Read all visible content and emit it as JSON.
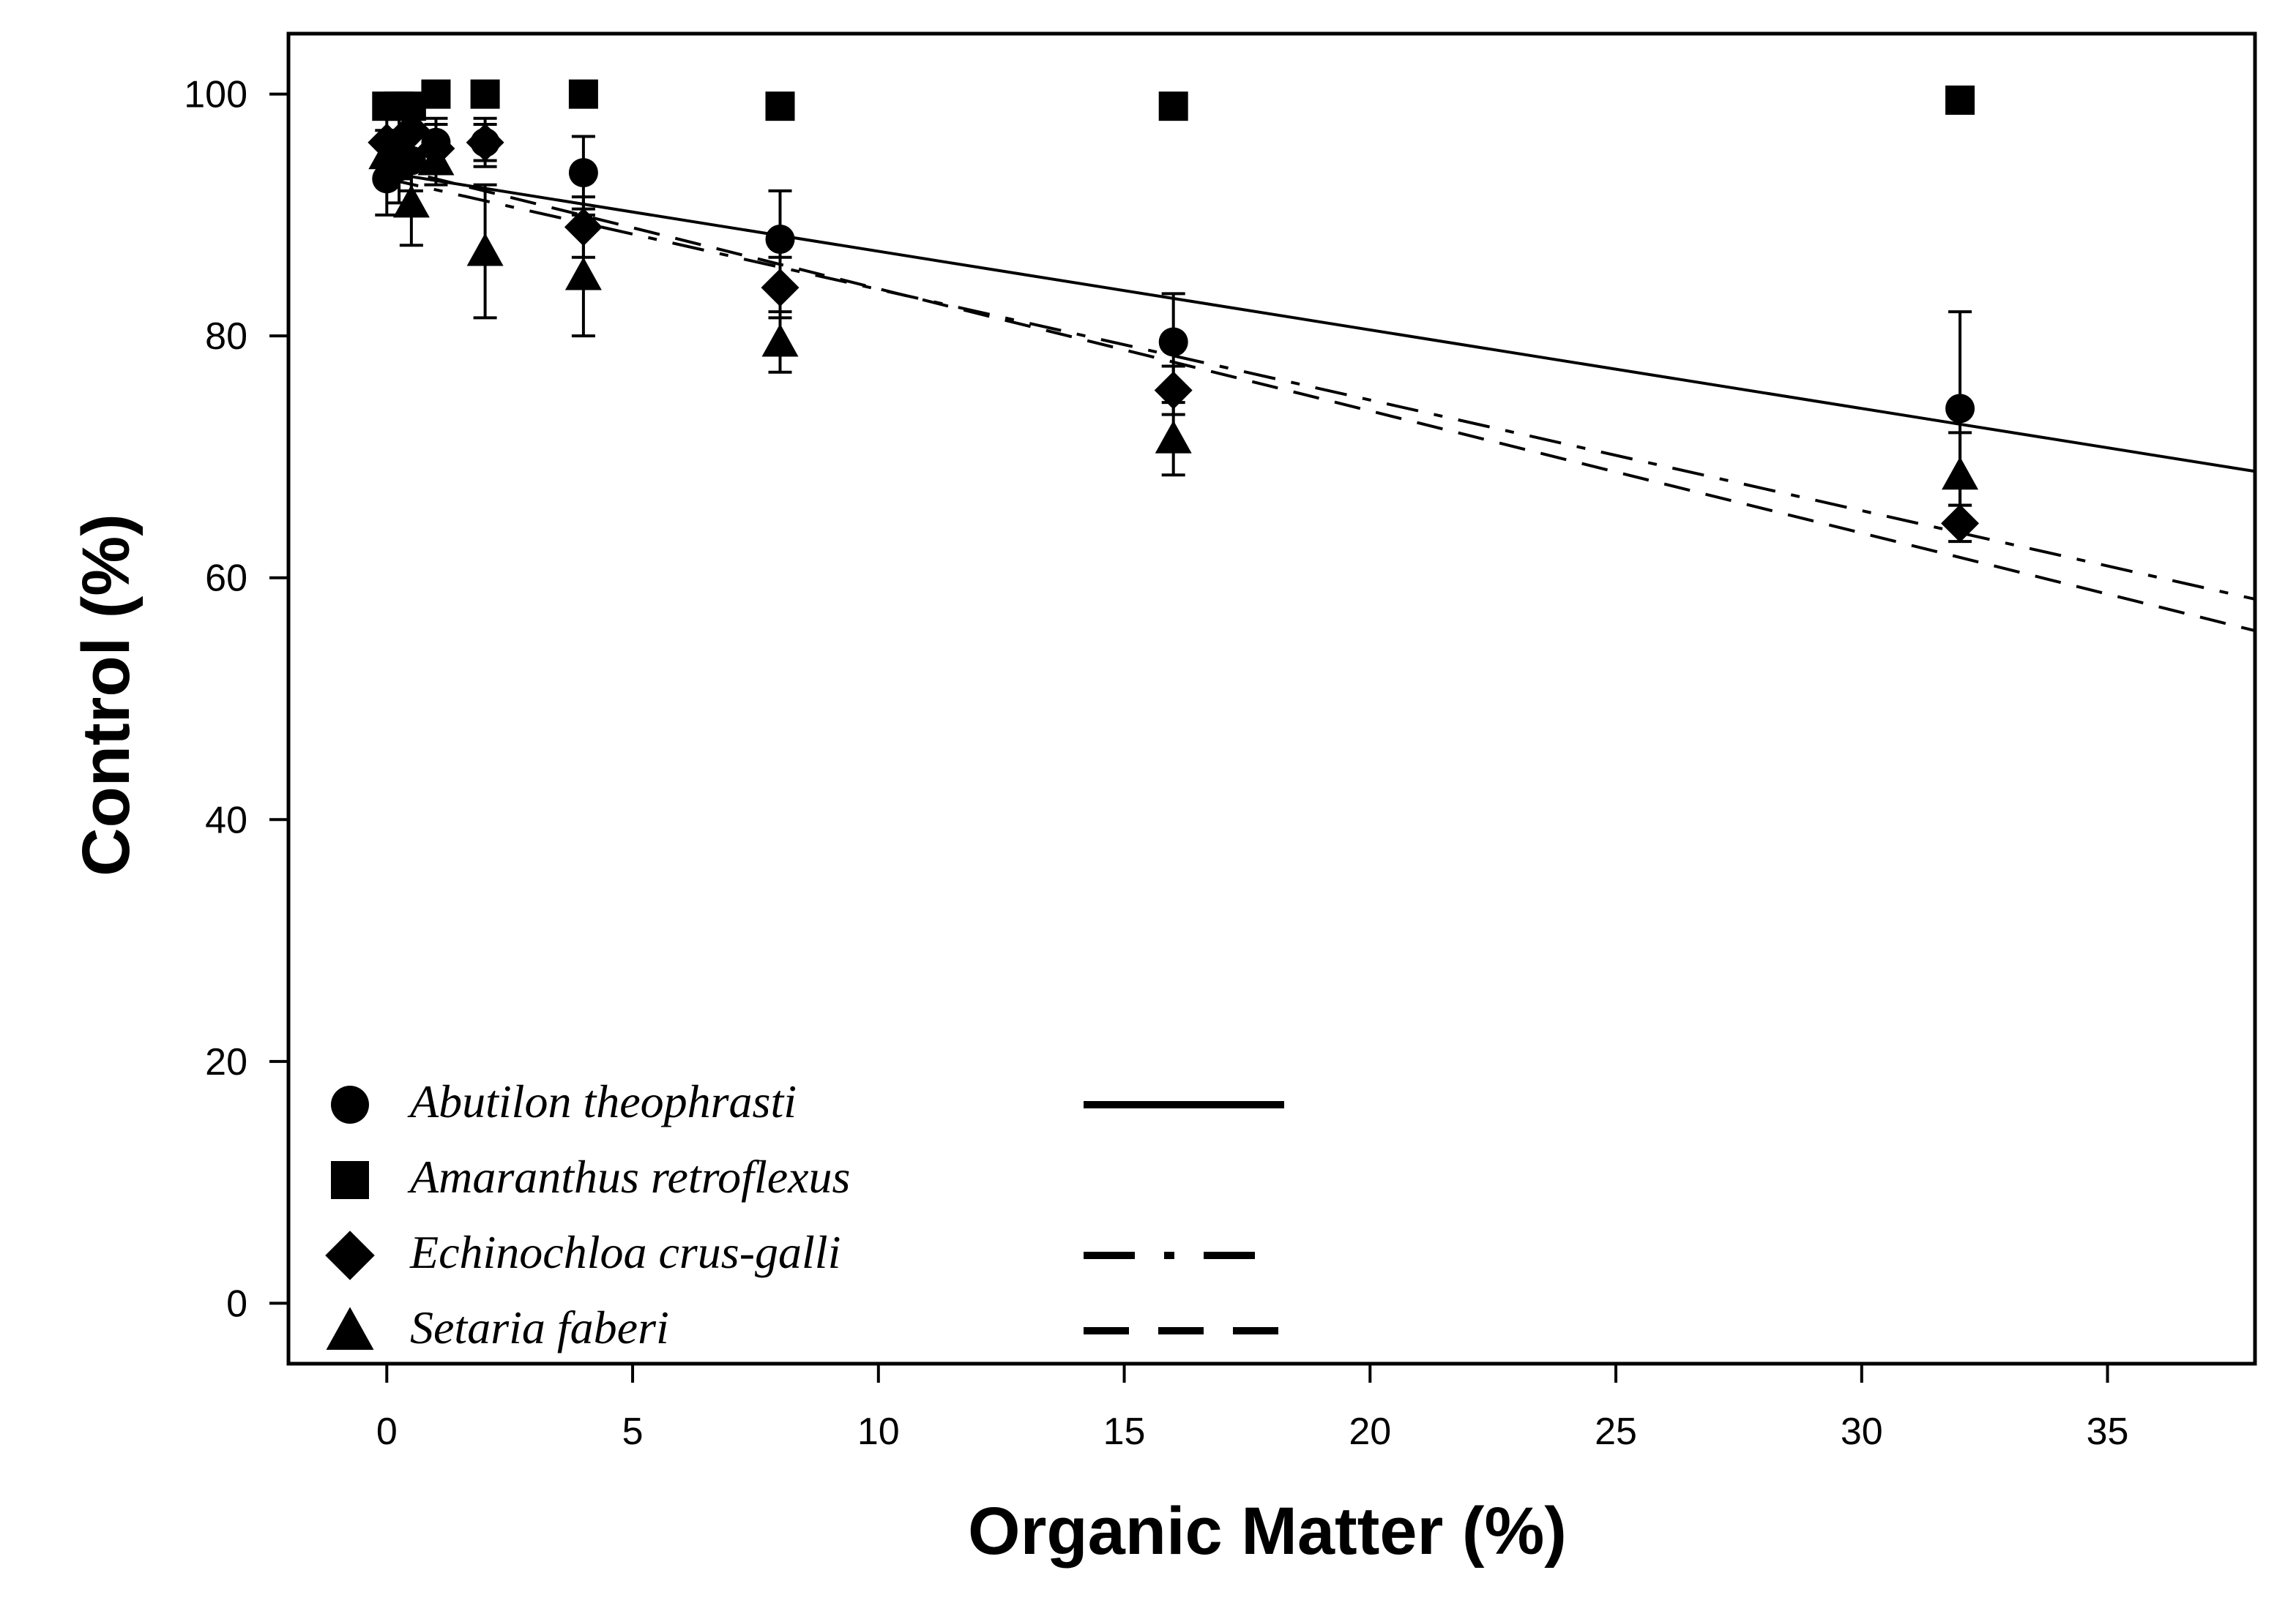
{
  "chart_data": {
    "type": "scatter",
    "title": "",
    "xlabel": "Organic Matter (%)",
    "ylabel": "Control (%)",
    "xlim": [
      -2,
      38
    ],
    "ylim": [
      -5,
      105
    ],
    "xticks": [
      0,
      5,
      10,
      15,
      20,
      25,
      30,
      35
    ],
    "yticks": [
      0,
      20,
      40,
      60,
      80,
      100
    ],
    "x": [
      0,
      0.25,
      0.5,
      1,
      2,
      4,
      8,
      16,
      32
    ],
    "series": [
      {
        "name": "Abutilon theophrasti",
        "marker": "circle",
        "line": "solid",
        "values": [
          93,
          94,
          94.5,
          96,
          96,
          93.5,
          88,
          79.5,
          74
        ],
        "errors": [
          3,
          3,
          2.5,
          2,
          1.5,
          3,
          4,
          4,
          8
        ],
        "fit": {
          "intercept": 93.5,
          "slope": -0.65
        }
      },
      {
        "name": "Amaranthus retroflexus",
        "marker": "square",
        "line": "none",
        "values": [
          99,
          99,
          99,
          100,
          100,
          100,
          99,
          99,
          99.5
        ],
        "errors": [
          0.8,
          0.8,
          0.8,
          0.5,
          0.5,
          0.5,
          0.8,
          0.8,
          0.5
        ]
      },
      {
        "name": "Echinochloa crus-galli",
        "marker": "diamond",
        "line": "dashdot",
        "values": [
          96,
          96,
          97,
          95.5,
          96,
          89,
          84,
          75.5,
          64.5
        ],
        "errors": [
          2,
          2,
          2,
          2,
          2,
          2.5,
          2.5,
          2,
          1.5
        ],
        "fit": {
          "intercept": 93,
          "slope": -0.915
        }
      },
      {
        "name": "Setaria faberi",
        "marker": "triangle",
        "line": "dashed",
        "values": [
          95,
          95,
          91,
          94.5,
          87,
          85,
          79.5,
          71.5,
          68.5
        ],
        "errors": [
          2,
          2,
          3.5,
          2,
          5.5,
          5,
          2.5,
          3,
          3.5
        ],
        "fit": {
          "intercept": 94,
          "slope": -1.01
        }
      }
    ],
    "legend": {
      "position": "bottom-left",
      "entries": [
        {
          "label": "Abutilon theophrasti",
          "marker": "circle",
          "line": "solid"
        },
        {
          "label": "Amaranthus retroflexus",
          "marker": "square",
          "line": "none"
        },
        {
          "label": "Echinochloa crus-galli",
          "marker": "diamond",
          "line": "dashdot"
        },
        {
          "label": "Setaria faberi",
          "marker": "triangle",
          "line": "dashed"
        }
      ]
    },
    "grid": false
  }
}
